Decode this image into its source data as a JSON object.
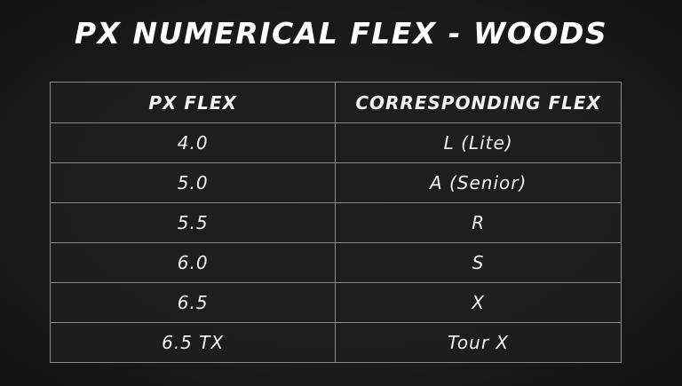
{
  "title": "PX NUMERICAL FLEX - WOODS",
  "table": {
    "headers": [
      "PX FLEX",
      "CORRESPONDING FLEX"
    ],
    "rows": [
      [
        "4.0",
        "L (Lite)"
      ],
      [
        "5.0",
        "A (Senior)"
      ],
      [
        "5.5",
        "R"
      ],
      [
        "6.0",
        "S"
      ],
      [
        "6.5",
        "X"
      ],
      [
        "6.5 TX",
        "Tour X"
      ]
    ]
  }
}
